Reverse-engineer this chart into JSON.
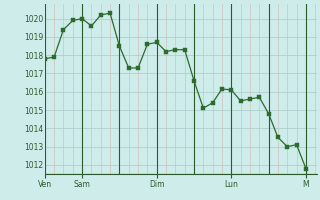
{
  "background_color": "#ceecea",
  "plot_bg_color": "#ceecea",
  "line_color": "#2d6a2d",
  "marker_color": "#2d6a2d",
  "grid_color_major": "#aacaca",
  "grid_color_minor": "#bddbd8",
  "axis_color": "#2d5a2d",
  "tick_color": "#2d5a2d",
  "ylim": [
    1011.5,
    1020.8
  ],
  "yticks": [
    1012,
    1013,
    1014,
    1015,
    1016,
    1017,
    1018,
    1019,
    1020
  ],
  "day_labels": [
    "Ven",
    "Sam",
    "Dim",
    "Lun",
    "M"
  ],
  "day_positions": [
    0,
    24,
    72,
    120,
    168
  ],
  "x_values": [
    0,
    6,
    12,
    18,
    24,
    30,
    36,
    42,
    48,
    54,
    60,
    66,
    72,
    78,
    84,
    90,
    96,
    102,
    108,
    114,
    120,
    126,
    132,
    138,
    144,
    150,
    156,
    162,
    168
  ],
  "y_values": [
    1017.8,
    1017.9,
    1019.4,
    1019.9,
    1020.0,
    1019.6,
    1020.2,
    1020.3,
    1018.5,
    1017.3,
    1017.3,
    1018.6,
    1018.7,
    1018.2,
    1018.3,
    1018.3,
    1016.6,
    1015.1,
    1015.4,
    1016.15,
    1016.1,
    1015.5,
    1015.6,
    1015.7,
    1014.8,
    1013.5,
    1013.0,
    1013.1,
    1011.8
  ],
  "xlim": [
    0,
    175
  ]
}
